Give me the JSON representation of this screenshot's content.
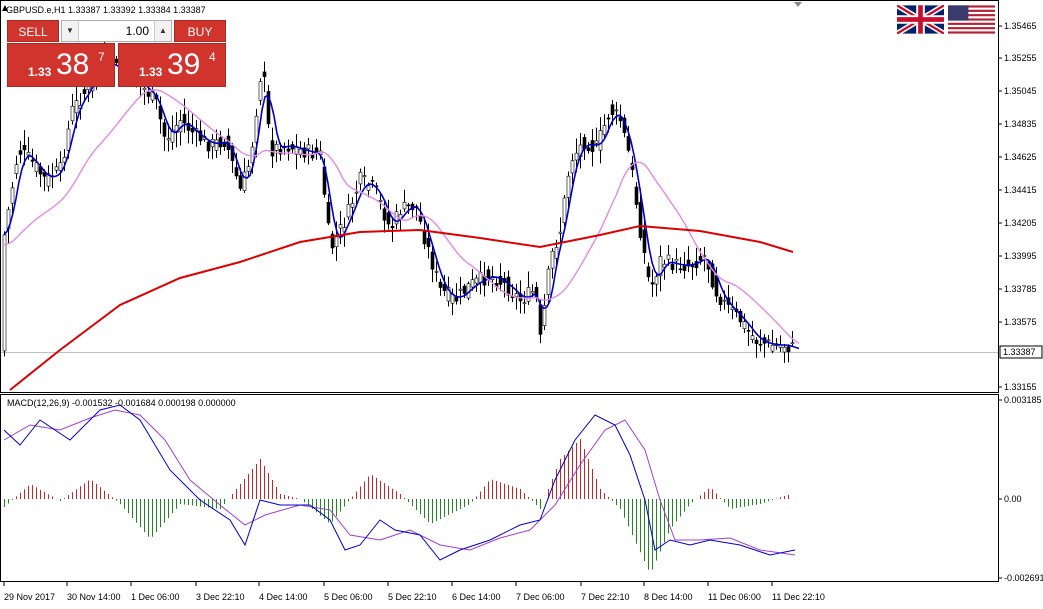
{
  "main": {
    "symbol_title": "GBPUSD.e,H1  1.33387 1.33392 1.33384 1.33387",
    "price_labels": [
      "1.35465",
      "1.35255",
      "1.35045",
      "1.34835",
      "1.34625",
      "1.34415",
      "1.34205",
      "1.33995",
      "1.33785",
      "1.33575",
      "1.33155"
    ],
    "current_price": "1.33387"
  },
  "oneclick": {
    "sell_label": "SELL",
    "buy_label": "BUY",
    "lot_value": "1.00",
    "bid_small": "1.33",
    "bid_big": "38",
    "bid_sup": "7",
    "ask_small": "1.33",
    "ask_big": "39",
    "ask_sup": "4"
  },
  "indicator": {
    "title": "MACD(12,26,9) -0.001532 -0.001684 0.000198 0.000000",
    "labels": [
      "0.003185",
      "0.00",
      "-0.002691"
    ]
  },
  "time_axis": {
    "labels": [
      "29 Nov 2017",
      "30 Nov 14:00",
      "1 Dec 06:00",
      "3 Dec 22:10",
      "4 Dec 14:00",
      "5 Dec 06:00",
      "5 Dec 22:10",
      "6 Dec 14:00",
      "7 Dec 06:00",
      "7 Dec 22:10",
      "8 Dec 14:00",
      "11 Dec 06:00",
      "11 Dec 22:10"
    ]
  },
  "flags": {
    "left": "united-kingdom-flag",
    "right": "united-states-flag"
  },
  "colors": {
    "candle": "#000000",
    "fast_ma": "#0000cc",
    "slow_ma": "#e38be3",
    "long_ma": "#dd0000",
    "macd_line": "#0000cc",
    "signal_line": "#a040d0",
    "hist_positive": "#d42020",
    "hist_negative": "#1b8a1b",
    "sell_button": "#d0342c"
  }
}
